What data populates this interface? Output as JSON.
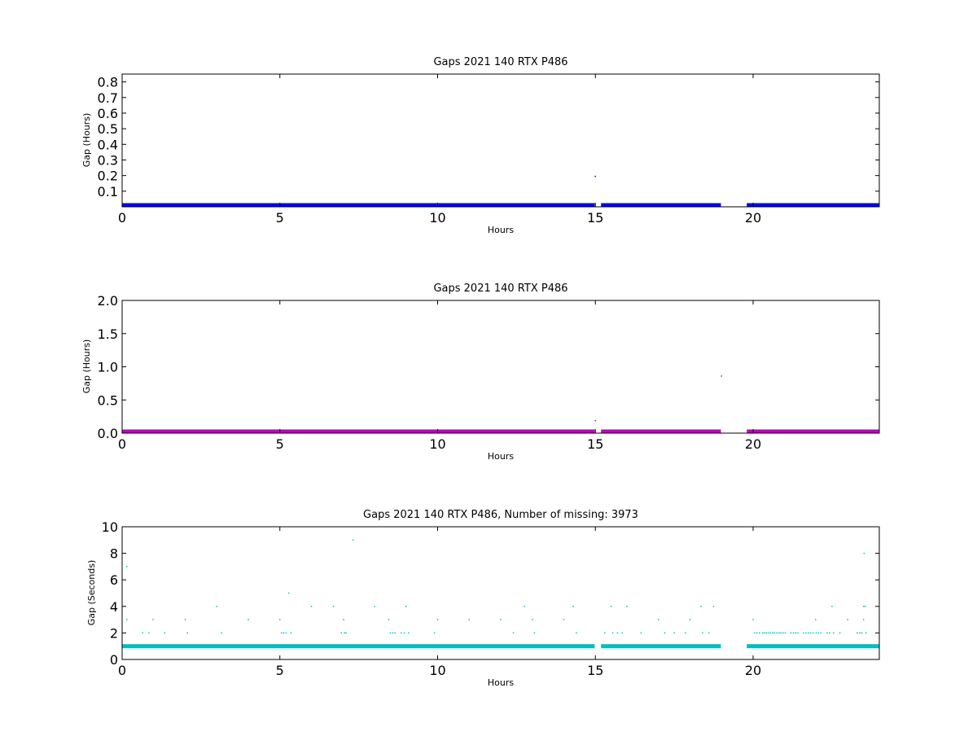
{
  "chart_data": [
    {
      "type": "scatter",
      "title": "Gaps 2021 140 RTX  P486",
      "xlabel": "Hours",
      "ylabel": "Gap (Hours)",
      "xlim": [
        0,
        24
      ],
      "ylim": [
        0,
        0.85
      ],
      "xticks": [
        0,
        5,
        10,
        15,
        20
      ],
      "yticks": [
        0.1,
        0.2,
        0.3,
        0.4,
        0.5,
        0.6,
        0.7,
        0.8
      ],
      "color": "#0000ff",
      "grid": false,
      "baseline": {
        "y": 0.0003,
        "segments": [
          [
            0,
            14.98
          ],
          [
            15.18,
            18.98
          ],
          [
            19.8,
            24
          ]
        ]
      },
      "points": [
        {
          "x": 15.0,
          "y": 0.195
        }
      ]
    },
    {
      "type": "scatter",
      "title": "Gaps 2021 140 RTX  P486",
      "xlabel": "Hours",
      "ylabel": "Gap (Hours)",
      "xlim": [
        0,
        24
      ],
      "ylim": [
        0,
        2.0
      ],
      "xticks": [
        0,
        5,
        10,
        15,
        20
      ],
      "yticks": [
        0.0,
        0.5,
        1.0,
        1.5,
        2.0
      ],
      "color": "#bf00bf",
      "grid": false,
      "baseline": {
        "y": 0.0003,
        "segments": [
          [
            0,
            14.98
          ],
          [
            15.18,
            18.98
          ],
          [
            19.8,
            24
          ]
        ]
      },
      "points": [
        {
          "x": 15.0,
          "y": 0.19
        },
        {
          "x": 19.0,
          "y": 0.86
        }
      ]
    },
    {
      "type": "scatter",
      "title": "Gaps 2021 140 RTX  P486, Number of missing: 3973",
      "xlabel": "Hours",
      "ylabel": "Gap (Seconds)",
      "xlim": [
        0,
        24
      ],
      "ylim": [
        0,
        10
      ],
      "xticks": [
        0,
        5,
        10,
        15,
        20
      ],
      "yticks": [
        0,
        2,
        4,
        6,
        8,
        10
      ],
      "color": "#00bfbf",
      "grid": false,
      "baseline": {
        "y": 1,
        "segments": [
          [
            0,
            14.98
          ],
          [
            15.18,
            18.98
          ],
          [
            19.8,
            24
          ]
        ]
      },
      "points": [
        {
          "x": 0.15,
          "y": 7
        },
        {
          "x": 0.15,
          "y": 3
        },
        {
          "x": 0.65,
          "y": 2
        },
        {
          "x": 0.85,
          "y": 2
        },
        {
          "x": 0.98,
          "y": 3
        },
        {
          "x": 1.35,
          "y": 2
        },
        {
          "x": 2.0,
          "y": 3
        },
        {
          "x": 2.07,
          "y": 2
        },
        {
          "x": 3.0,
          "y": 4
        },
        {
          "x": 3.15,
          "y": 2
        },
        {
          "x": 4.0,
          "y": 3
        },
        {
          "x": 5.0,
          "y": 3
        },
        {
          "x": 5.05,
          "y": 2
        },
        {
          "x": 5.12,
          "y": 2
        },
        {
          "x": 5.2,
          "y": 2
        },
        {
          "x": 5.28,
          "y": 5
        },
        {
          "x": 5.35,
          "y": 2
        },
        {
          "x": 6.0,
          "y": 4
        },
        {
          "x": 6.7,
          "y": 4
        },
        {
          "x": 6.95,
          "y": 2
        },
        {
          "x": 7.02,
          "y": 3
        },
        {
          "x": 7.05,
          "y": 2
        },
        {
          "x": 7.1,
          "y": 2
        },
        {
          "x": 7.32,
          "y": 9
        },
        {
          "x": 8.0,
          "y": 4
        },
        {
          "x": 8.45,
          "y": 3
        },
        {
          "x": 8.5,
          "y": 2
        },
        {
          "x": 8.58,
          "y": 2
        },
        {
          "x": 8.65,
          "y": 2
        },
        {
          "x": 8.85,
          "y": 2
        },
        {
          "x": 8.95,
          "y": 2
        },
        {
          "x": 9.0,
          "y": 4
        },
        {
          "x": 9.08,
          "y": 2
        },
        {
          "x": 9.9,
          "y": 2
        },
        {
          "x": 10.0,
          "y": 3
        },
        {
          "x": 11.0,
          "y": 3
        },
        {
          "x": 12.0,
          "y": 3
        },
        {
          "x": 12.4,
          "y": 2
        },
        {
          "x": 12.75,
          "y": 4
        },
        {
          "x": 13.0,
          "y": 3
        },
        {
          "x": 13.07,
          "y": 2
        },
        {
          "x": 14.0,
          "y": 3
        },
        {
          "x": 14.3,
          "y": 4
        },
        {
          "x": 14.4,
          "y": 2
        },
        {
          "x": 15.3,
          "y": 2
        },
        {
          "x": 15.5,
          "y": 4
        },
        {
          "x": 15.55,
          "y": 2
        },
        {
          "x": 15.7,
          "y": 2
        },
        {
          "x": 15.85,
          "y": 2
        },
        {
          "x": 16.0,
          "y": 4
        },
        {
          "x": 16.45,
          "y": 2
        },
        {
          "x": 17.0,
          "y": 3
        },
        {
          "x": 17.2,
          "y": 2
        },
        {
          "x": 17.5,
          "y": 2
        },
        {
          "x": 17.85,
          "y": 2
        },
        {
          "x": 18.0,
          "y": 3
        },
        {
          "x": 18.35,
          "y": 4
        },
        {
          "x": 18.4,
          "y": 2
        },
        {
          "x": 18.6,
          "y": 2
        },
        {
          "x": 18.75,
          "y": 4
        },
        {
          "x": 20.0,
          "y": 3
        },
        {
          "x": 20.05,
          "y": 2
        },
        {
          "x": 20.12,
          "y": 2
        },
        {
          "x": 20.2,
          "y": 2
        },
        {
          "x": 20.3,
          "y": 2
        },
        {
          "x": 20.36,
          "y": 2
        },
        {
          "x": 20.42,
          "y": 2
        },
        {
          "x": 20.48,
          "y": 2
        },
        {
          "x": 20.55,
          "y": 2
        },
        {
          "x": 20.62,
          "y": 2
        },
        {
          "x": 20.68,
          "y": 2
        },
        {
          "x": 20.75,
          "y": 2
        },
        {
          "x": 20.82,
          "y": 2
        },
        {
          "x": 20.88,
          "y": 2
        },
        {
          "x": 20.95,
          "y": 2
        },
        {
          "x": 21.02,
          "y": 2
        },
        {
          "x": 21.2,
          "y": 2
        },
        {
          "x": 21.28,
          "y": 2
        },
        {
          "x": 21.35,
          "y": 2
        },
        {
          "x": 21.42,
          "y": 2
        },
        {
          "x": 21.6,
          "y": 2
        },
        {
          "x": 21.68,
          "y": 2
        },
        {
          "x": 21.75,
          "y": 2
        },
        {
          "x": 21.82,
          "y": 2
        },
        {
          "x": 21.9,
          "y": 2
        },
        {
          "x": 21.98,
          "y": 3
        },
        {
          "x": 22.0,
          "y": 2
        },
        {
          "x": 22.07,
          "y": 2
        },
        {
          "x": 22.15,
          "y": 2
        },
        {
          "x": 22.35,
          "y": 2
        },
        {
          "x": 22.42,
          "y": 2
        },
        {
          "x": 22.5,
          "y": 4
        },
        {
          "x": 22.55,
          "y": 2
        },
        {
          "x": 22.75,
          "y": 2
        },
        {
          "x": 23.0,
          "y": 3
        },
        {
          "x": 23.3,
          "y": 2
        },
        {
          "x": 23.38,
          "y": 2
        },
        {
          "x": 23.45,
          "y": 2
        },
        {
          "x": 23.5,
          "y": 3
        },
        {
          "x": 23.5,
          "y": 4
        },
        {
          "x": 23.52,
          "y": 8
        },
        {
          "x": 23.55,
          "y": 4
        },
        {
          "x": 23.58,
          "y": 2
        }
      ]
    }
  ]
}
